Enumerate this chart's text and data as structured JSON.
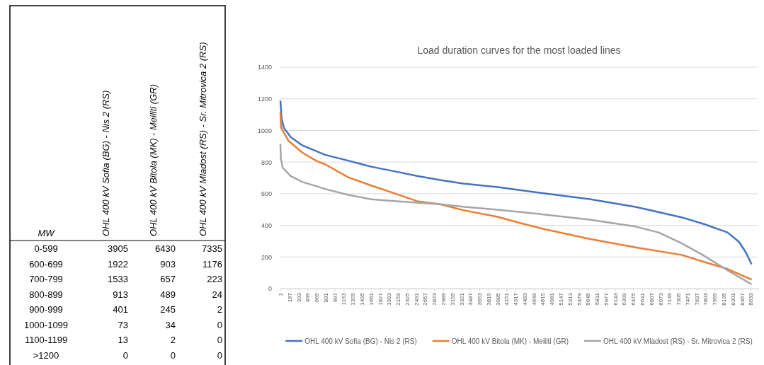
{
  "chart_data": [
    {
      "type": "heatmap",
      "ylabel": "MW",
      "categories": [
        "OHL 400 kV Sofia (BG) - Nis 2 (RS)",
        "OHL 400 kV Bitola (MK) - Meiliti (GR)",
        "OHL 400 kV Mladost (RS) - Sr. Mitrovica 2 (RS)"
      ],
      "y_categories": [
        "0-599",
        "600-699",
        "700-799",
        "800-899",
        "900-999",
        "1000-1099",
        "1100-1199",
        ">1200"
      ],
      "cells": [
        [
          3905,
          6430,
          7335
        ],
        [
          1922,
          903,
          1176
        ],
        [
          1533,
          657,
          223
        ],
        [
          913,
          489,
          24
        ],
        [
          401,
          245,
          2
        ],
        [
          73,
          34,
          0
        ],
        [
          13,
          2,
          0
        ],
        [
          0,
          0,
          0
        ]
      ],
      "data_labels": true
    },
    {
      "type": "line",
      "title": "Load duration curves for the most loaded lines",
      "xlim": [
        1,
        8760
      ],
      "ylim": [
        0,
        1400
      ],
      "yticks": [
        0,
        200,
        400,
        600,
        800,
        1000,
        1200,
        1400
      ],
      "xticks": [
        1,
        167,
        333,
        499,
        665,
        831,
        997,
        1163,
        1329,
        1495,
        1661,
        1827,
        1993,
        2159,
        2325,
        2491,
        2657,
        2823,
        2989,
        3155,
        3321,
        3487,
        3653,
        3819,
        3985,
        4151,
        4317,
        4483,
        4649,
        4815,
        4981,
        5147,
        5313,
        5479,
        5645,
        5811,
        5977,
        6143,
        6309,
        6475,
        6641,
        6807,
        6973,
        7139,
        7305,
        7471,
        7637,
        7803,
        7969,
        8135,
        8301,
        8467,
        8633
      ],
      "grid": "y",
      "legend": "bottom",
      "marker": "none",
      "line_style": "solid",
      "series": [
        {
          "name": "OHL 400 kV Sofia (BG) - Nis 2 (RS)",
          "color": "#4472c4",
          "x": [
            1,
            22,
            64,
            190,
            401,
            823,
            1245,
            1667,
            2089,
            2511,
            2933,
            3355,
            3988,
            4833,
            5676,
            6520,
            7364,
            7786,
            8208,
            8419,
            8545,
            8650
          ],
          "values": [
            1189,
            1077,
            1017,
            958,
            906,
            846,
            809,
            771,
            742,
            712,
            687,
            664,
            642,
            603,
            566,
            517,
            451,
            407,
            355,
            295,
            228,
            153
          ]
        },
        {
          "name": "OHL 400 kV Bitola (MK) - Meiliti (GR)",
          "color": "#ed7d31",
          "x": [
            1,
            14,
            64,
            148,
            401,
            654,
            823,
            1245,
            1667,
            2089,
            2511,
            2933,
            3355,
            3988,
            4411,
            4833,
            5676,
            6520,
            7364,
            7786,
            8208,
            8650
          ],
          "values": [
            1114,
            1017,
            987,
            935,
            861,
            809,
            786,
            704,
            652,
            603,
            553,
            533,
            496,
            454,
            414,
            377,
            314,
            261,
            213,
            168,
            124,
            57
          ]
        },
        {
          "name": "OHL 400 kV Mladost (RS) - Sr. Mitrovica 2 (RS)",
          "color": "#a5a5a5",
          "x": [
            1,
            9,
            43,
            190,
            401,
            823,
            1245,
            1667,
            2089,
            2511,
            2933,
            3355,
            3988,
            4833,
            5676,
            6520,
            6942,
            7364,
            7786,
            8208,
            8650
          ],
          "values": [
            916,
            824,
            764,
            712,
            675,
            630,
            593,
            565,
            553,
            543,
            533,
            518,
            499,
            469,
            436,
            392,
            355,
            287,
            206,
            116,
            27
          ]
        }
      ]
    }
  ]
}
